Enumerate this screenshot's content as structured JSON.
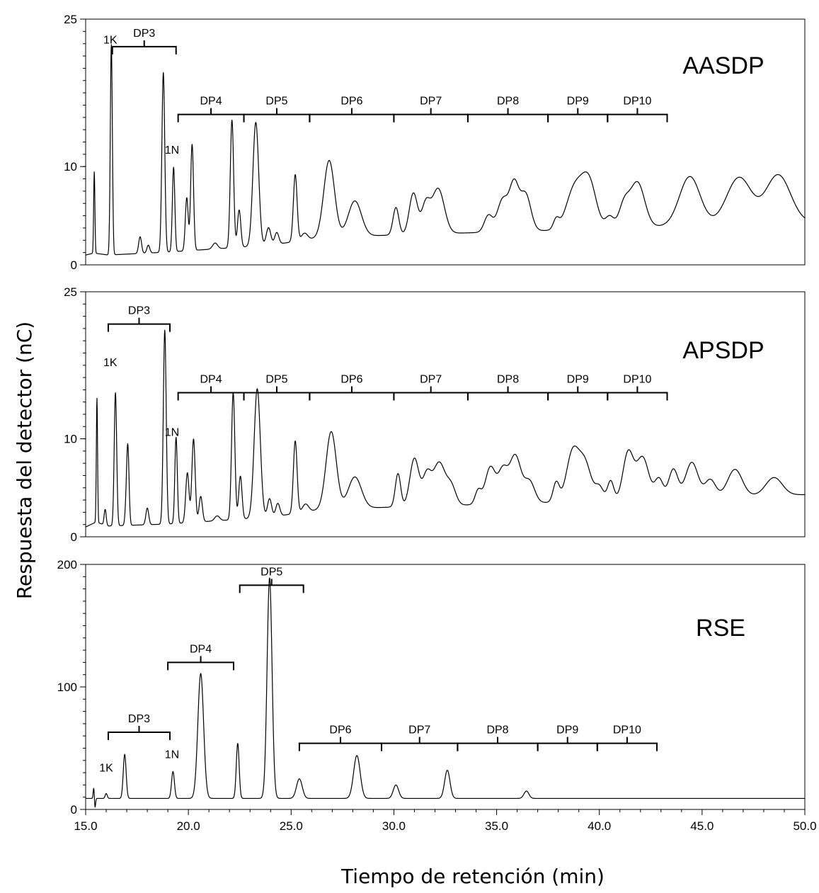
{
  "chart_data": [
    {
      "type": "line",
      "sample": "AASDP",
      "xlim": [
        15.0,
        50.0
      ],
      "ylim": [
        0,
        25
      ],
      "yticks": [
        "0",
        "10",
        "25"
      ],
      "annotations": [
        {
          "text": "1K",
          "x": 16.2,
          "y": 22.5
        },
        {
          "text": "1N",
          "x": 19.2,
          "y": 11.3
        }
      ],
      "brackets": [
        {
          "label": "DP3",
          "x0": 16.3,
          "x1": 19.4,
          "y": 22.2
        },
        {
          "label": "DP4",
          "x0": 19.5,
          "x1": 22.7,
          "y": 15.3
        },
        {
          "label": "DP5",
          "x0": 22.7,
          "x1": 25.9,
          "y": 15.3
        },
        {
          "label": "DP6",
          "x0": 25.9,
          "x1": 30.0,
          "y": 15.3
        },
        {
          "label": "DP7",
          "x0": 30.0,
          "x1": 33.6,
          "y": 15.3
        },
        {
          "label": "DP8",
          "x0": 33.6,
          "x1": 37.5,
          "y": 15.3
        },
        {
          "label": "DP9",
          "x0": 37.5,
          "x1": 40.4,
          "y": 15.3
        },
        {
          "label": "DP10",
          "x0": 40.4,
          "x1": 43.3,
          "y": 15.3
        }
      ],
      "baseline": [
        [
          15.0,
          1.0
        ],
        [
          15.4,
          1.2
        ],
        [
          16.1,
          1.0
        ],
        [
          19.0,
          1.3
        ],
        [
          24.0,
          2.0
        ],
        [
          26.5,
          2.8
        ],
        [
          31.0,
          3.1
        ],
        [
          36.0,
          3.4
        ],
        [
          39.0,
          3.6
        ],
        [
          42.0,
          3.8
        ],
        [
          44.5,
          4.1
        ],
        [
          50.0,
          4.3
        ]
      ],
      "peaks": [
        [
          15.42,
          8.3,
          0.03
        ],
        [
          16.25,
          21.4,
          0.05
        ],
        [
          17.65,
          1.7,
          0.07
        ],
        [
          18.05,
          0.8,
          0.07
        ],
        [
          18.78,
          18.3,
          0.07
        ],
        [
          19.28,
          8.6,
          0.06
        ],
        [
          19.92,
          5.4,
          0.07
        ],
        [
          20.18,
          10.8,
          0.07
        ],
        [
          21.3,
          0.6,
          0.12
        ],
        [
          22.12,
          13.0,
          0.08
        ],
        [
          22.47,
          3.8,
          0.08
        ],
        [
          23.28,
          12.6,
          0.14
        ],
        [
          23.9,
          1.8,
          0.11
        ],
        [
          24.3,
          1.2,
          0.1
        ],
        [
          25.2,
          6.8,
          0.09
        ],
        [
          25.65,
          0.7,
          0.15
        ],
        [
          26.85,
          7.8,
          0.26
        ],
        [
          28.1,
          3.6,
          0.32
        ],
        [
          30.1,
          2.8,
          0.14
        ],
        [
          30.95,
          4.2,
          0.2
        ],
        [
          31.55,
          2.9,
          0.2
        ],
        [
          32.15,
          4.6,
          0.3
        ],
        [
          34.6,
          1.7,
          0.2
        ],
        [
          35.3,
          3.3,
          0.26
        ],
        [
          35.85,
          4.6,
          0.22
        ],
        [
          36.4,
          3.8,
          0.26
        ],
        [
          37.9,
          1.0,
          0.14
        ],
        [
          38.8,
          4.2,
          0.4
        ],
        [
          39.5,
          4.6,
          0.35
        ],
        [
          40.5,
          1.2,
          0.2
        ],
        [
          41.2,
          2.3,
          0.25
        ],
        [
          41.85,
          4.6,
          0.35
        ],
        [
          44.4,
          4.9,
          0.5
        ],
        [
          46.8,
          4.7,
          0.6
        ],
        [
          48.7,
          4.9,
          0.6
        ]
      ]
    },
    {
      "type": "line",
      "sample": "APSDP",
      "xlim": [
        15.0,
        50.0
      ],
      "ylim": [
        0,
        25
      ],
      "yticks": [
        "0",
        "10",
        "25"
      ],
      "annotations": [
        {
          "text": "1K",
          "x": 16.2,
          "y": 17.4
        },
        {
          "text": "1N",
          "x": 19.2,
          "y": 10.3
        }
      ],
      "brackets": [
        {
          "label": "DP3",
          "x0": 16.1,
          "x1": 19.1,
          "y": 21.7
        },
        {
          "label": "DP4",
          "x0": 19.5,
          "x1": 22.7,
          "y": 14.7
        },
        {
          "label": "DP5",
          "x0": 22.7,
          "x1": 25.9,
          "y": 14.7
        },
        {
          "label": "DP6",
          "x0": 25.9,
          "x1": 30.0,
          "y": 14.7
        },
        {
          "label": "DP7",
          "x0": 30.0,
          "x1": 33.6,
          "y": 14.7
        },
        {
          "label": "DP8",
          "x0": 33.6,
          "x1": 37.5,
          "y": 14.7
        },
        {
          "label": "DP9",
          "x0": 37.5,
          "x1": 40.4,
          "y": 14.7
        },
        {
          "label": "DP10",
          "x0": 40.4,
          "x1": 43.3,
          "y": 14.7
        }
      ],
      "baseline": [
        [
          15.0,
          1.0
        ],
        [
          15.5,
          1.5
        ],
        [
          16.1,
          1.1
        ],
        [
          19.0,
          1.3
        ],
        [
          24.0,
          2.0
        ],
        [
          26.5,
          2.8
        ],
        [
          31.0,
          3.1
        ],
        [
          36.0,
          3.4
        ],
        [
          39.0,
          3.6
        ],
        [
          42.0,
          3.8
        ],
        [
          44.5,
          4.1
        ],
        [
          50.0,
          4.3
        ]
      ],
      "peaks": [
        [
          15.55,
          12.7,
          0.03
        ],
        [
          15.95,
          1.6,
          0.05
        ],
        [
          16.45,
          13.6,
          0.06
        ],
        [
          16.95,
          1.0,
          0.05
        ],
        [
          17.05,
          8.2,
          0.06
        ],
        [
          18.0,
          1.7,
          0.07
        ],
        [
          18.85,
          19.8,
          0.07
        ],
        [
          19.4,
          8.8,
          0.06
        ],
        [
          19.95,
          5.1,
          0.08
        ],
        [
          20.25,
          8.5,
          0.08
        ],
        [
          20.6,
          2.6,
          0.08
        ],
        [
          21.4,
          0.5,
          0.12
        ],
        [
          22.18,
          13.0,
          0.08
        ],
        [
          22.53,
          4.4,
          0.08
        ],
        [
          23.35,
          13.2,
          0.15
        ],
        [
          23.95,
          1.9,
          0.1
        ],
        [
          24.35,
          1.3,
          0.1
        ],
        [
          25.2,
          7.4,
          0.09
        ],
        [
          25.7,
          0.8,
          0.15
        ],
        [
          26.95,
          7.9,
          0.25
        ],
        [
          28.1,
          3.2,
          0.32
        ],
        [
          30.2,
          3.4,
          0.13
        ],
        [
          31.0,
          4.9,
          0.22
        ],
        [
          31.6,
          3.0,
          0.2
        ],
        [
          32.2,
          4.4,
          0.3
        ],
        [
          32.8,
          1.8,
          0.22
        ],
        [
          34.1,
          1.4,
          0.15
        ],
        [
          34.7,
          3.8,
          0.25
        ],
        [
          35.3,
          3.2,
          0.22
        ],
        [
          35.9,
          4.9,
          0.28
        ],
        [
          36.6,
          2.2,
          0.25
        ],
        [
          37.9,
          2.0,
          0.15
        ],
        [
          38.7,
          5.0,
          0.3
        ],
        [
          39.3,
          3.8,
          0.3
        ],
        [
          40.0,
          1.4,
          0.2
        ],
        [
          40.55,
          2.0,
          0.15
        ],
        [
          41.4,
          4.8,
          0.25
        ],
        [
          42.1,
          4.3,
          0.3
        ],
        [
          42.9,
          2.0,
          0.2
        ],
        [
          43.6,
          2.9,
          0.22
        ],
        [
          44.5,
          3.5,
          0.3
        ],
        [
          45.4,
          1.7,
          0.25
        ],
        [
          46.6,
          2.7,
          0.35
        ],
        [
          48.5,
          1.8,
          0.4
        ]
      ]
    },
    {
      "type": "line",
      "sample": "RSE",
      "xlim": [
        15.0,
        50.0
      ],
      "ylim": [
        0,
        200
      ],
      "yticks": [
        "0",
        "100",
        "200"
      ],
      "xticks": [
        "15.0",
        "20.0",
        "25.0",
        "30.0",
        "35.0",
        "40.0",
        "45.0",
        "50.0"
      ],
      "annotations": [
        {
          "text": "1K",
          "x": 16.0,
          "y": 31
        },
        {
          "text": "1N",
          "x": 19.2,
          "y": 42
        }
      ],
      "brackets": [
        {
          "label": "DP3",
          "x0": 16.1,
          "x1": 19.1,
          "y": 63
        },
        {
          "label": "DP4",
          "x0": 19.0,
          "x1": 22.2,
          "y": 120
        },
        {
          "label": "DP5",
          "x0": 22.5,
          "x1": 25.6,
          "y": 183
        },
        {
          "label": "DP6",
          "x0": 25.4,
          "x1": 29.4,
          "y": 54
        },
        {
          "label": "DP7",
          "x0": 29.4,
          "x1": 33.1,
          "y": 54
        },
        {
          "label": "DP8",
          "x0": 33.1,
          "x1": 37.0,
          "y": 54
        },
        {
          "label": "DP9",
          "x0": 37.0,
          "x1": 39.9,
          "y": 54
        },
        {
          "label": "DP10",
          "x0": 39.9,
          "x1": 42.8,
          "y": 54
        }
      ],
      "baseline": [
        [
          15.0,
          9.0
        ],
        [
          50.0,
          9.0
        ]
      ],
      "dips": [
        [
          15.45,
          -9.0,
          0.03
        ]
      ],
      "peaks": [
        [
          15.4,
          10.0,
          0.03
        ],
        [
          16.0,
          4.0,
          0.05
        ],
        [
          16.9,
          36.0,
          0.07
        ],
        [
          19.25,
          22.0,
          0.07
        ],
        [
          20.6,
          102.0,
          0.14
        ],
        [
          22.4,
          45.0,
          0.07
        ],
        [
          23.95,
          180.0,
          0.12
        ],
        [
          25.4,
          16.0,
          0.14
        ],
        [
          28.2,
          35.0,
          0.16
        ],
        [
          30.1,
          11.0,
          0.13
        ],
        [
          32.6,
          23.0,
          0.13
        ],
        [
          36.45,
          6.0,
          0.12
        ]
      ]
    }
  ],
  "axes": {
    "ylabel": "Respuesta del detector (nC)",
    "xlabel": "Tiempo de retención (min)"
  },
  "colors": {
    "trace": "#000000",
    "background": "#ffffff"
  }
}
